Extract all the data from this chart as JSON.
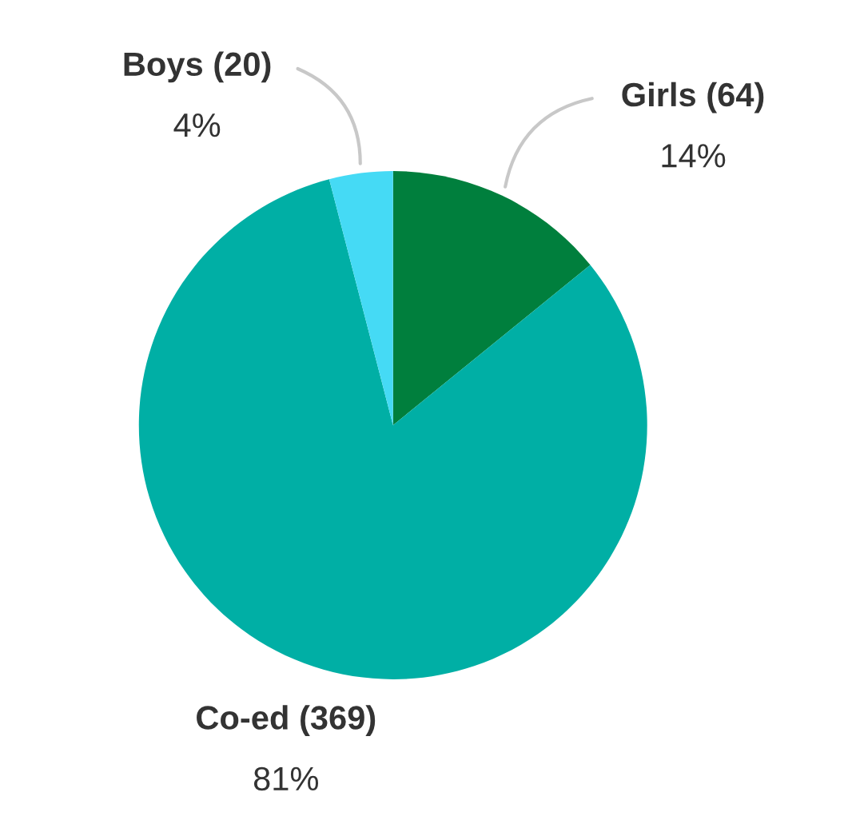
{
  "chart_data": {
    "type": "pie",
    "categories": [
      "Girls (64)",
      "Co-ed (369)",
      "Boys (20)"
    ],
    "values": [
      14,
      81,
      4
    ],
    "value_labels": [
      "14%",
      "81%",
      "4%"
    ],
    "colors": [
      "#007f3d",
      "#00afa5",
      "#45daf5"
    ],
    "legend": false
  }
}
